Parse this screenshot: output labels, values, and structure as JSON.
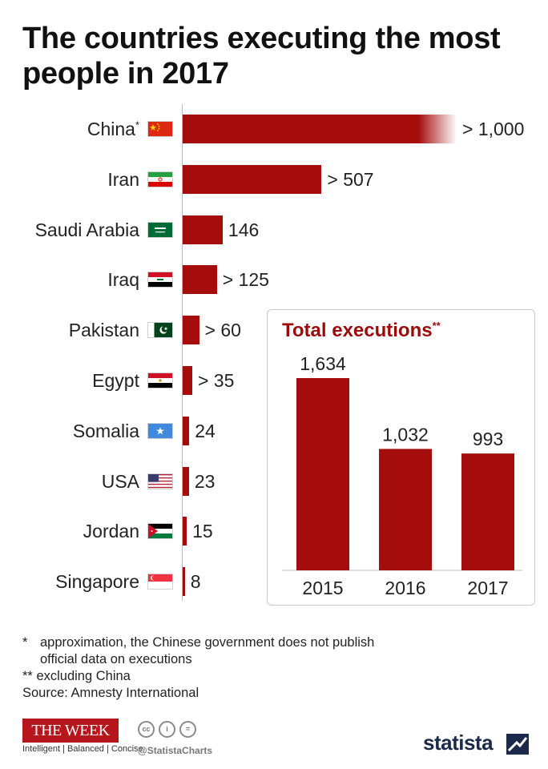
{
  "title": "The countries executing the most people in 2017",
  "chart_data": [
    {
      "type": "bar",
      "orientation": "horizontal",
      "categories": [
        "China",
        "Iran",
        "Saudi Arabia",
        "Iraq",
        "Pakistan",
        "Egypt",
        "Somalia",
        "USA",
        "Jordan",
        "Singapore"
      ],
      "category_markers": [
        "*",
        "",
        "",
        "",
        "",
        "",
        "",
        "",
        "",
        ""
      ],
      "values": [
        1000,
        507,
        146,
        125,
        60,
        35,
        24,
        23,
        15,
        8
      ],
      "value_labels": [
        "> 1,000",
        "> 507",
        "146",
        "> 125",
        "> 60",
        "> 35",
        "24",
        "23",
        "15",
        "8"
      ],
      "flags": [
        "china-flag-icon",
        "iran-flag-icon",
        "saudi-arabia-flag-icon",
        "iraq-flag-icon",
        "pakistan-flag-icon",
        "egypt-flag-icon",
        "somalia-flag-icon",
        "usa-flag-icon",
        "jordan-flag-icon",
        "singapore-flag-icon"
      ],
      "color": "#a50d0d"
    },
    {
      "type": "bar",
      "title": "Total executions",
      "title_marker": "**",
      "categories": [
        "2015",
        "2016",
        "2017"
      ],
      "values": [
        1634,
        1032,
        993
      ],
      "value_labels": [
        "1,634",
        "1,032",
        "993"
      ],
      "color": "#a50d0d"
    }
  ],
  "notes": [
    {
      "marker": "*",
      "text": "approximation, the Chinese government does not publish official data on executions"
    },
    {
      "marker": "**",
      "text": "excluding China"
    },
    {
      "marker": "",
      "text": "Source: Amnesty International"
    }
  ],
  "branding": {
    "theweek_logo": "THE WEEK",
    "theweek_tagline": "Intelligent | Balanced | Concise",
    "handle": "@StatistaCharts",
    "statista": "statista"
  }
}
